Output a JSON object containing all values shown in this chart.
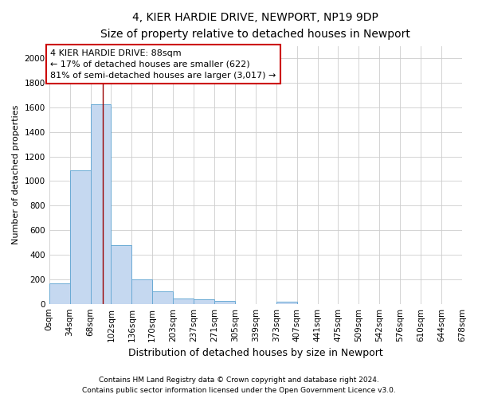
{
  "title_line1": "4, KIER HARDIE DRIVE, NEWPORT, NP19 9DP",
  "title_line2": "Size of property relative to detached houses in Newport",
  "xlabel": "Distribution of detached houses by size in Newport",
  "ylabel": "Number of detached properties",
  "bar_values": [
    165,
    1085,
    1625,
    480,
    200,
    100,
    45,
    35,
    25,
    0,
    0,
    20,
    0,
    0,
    0,
    0,
    0,
    0,
    0,
    0
  ],
  "bin_labels": [
    "0sqm",
    "34sqm",
    "68sqm",
    "102sqm",
    "136sqm",
    "170sqm",
    "203sqm",
    "237sqm",
    "271sqm",
    "305sqm",
    "339sqm",
    "373sqm",
    "407sqm",
    "441sqm",
    "475sqm",
    "509sqm",
    "542sqm",
    "576sqm",
    "610sqm",
    "644sqm",
    "678sqm"
  ],
  "bar_color": "#c5d8f0",
  "bar_edge_color": "#6aaad4",
  "grid_color": "#cccccc",
  "vline_x": 88,
  "vline_color": "#990000",
  "annotation_text": "4 KIER HARDIE DRIVE: 88sqm\n← 17% of detached houses are smaller (622)\n81% of semi-detached houses are larger (3,017) →",
  "annotation_box_facecolor": "#ffffff",
  "annotation_box_edgecolor": "#cc0000",
  "ylim": [
    0,
    2100
  ],
  "yticks": [
    0,
    200,
    400,
    600,
    800,
    1000,
    1200,
    1400,
    1600,
    1800,
    2000
  ],
  "footer_line1": "Contains HM Land Registry data © Crown copyright and database right 2024.",
  "footer_line2": "Contains public sector information licensed under the Open Government Licence v3.0.",
  "bin_width": 34,
  "n_bins": 20,
  "property_sqm": 88,
  "title_fontsize": 10,
  "subtitle_fontsize": 9,
  "ylabel_fontsize": 8,
  "xlabel_fontsize": 9,
  "tick_fontsize": 7.5,
  "annotation_fontsize": 8,
  "footer_fontsize": 6.5
}
